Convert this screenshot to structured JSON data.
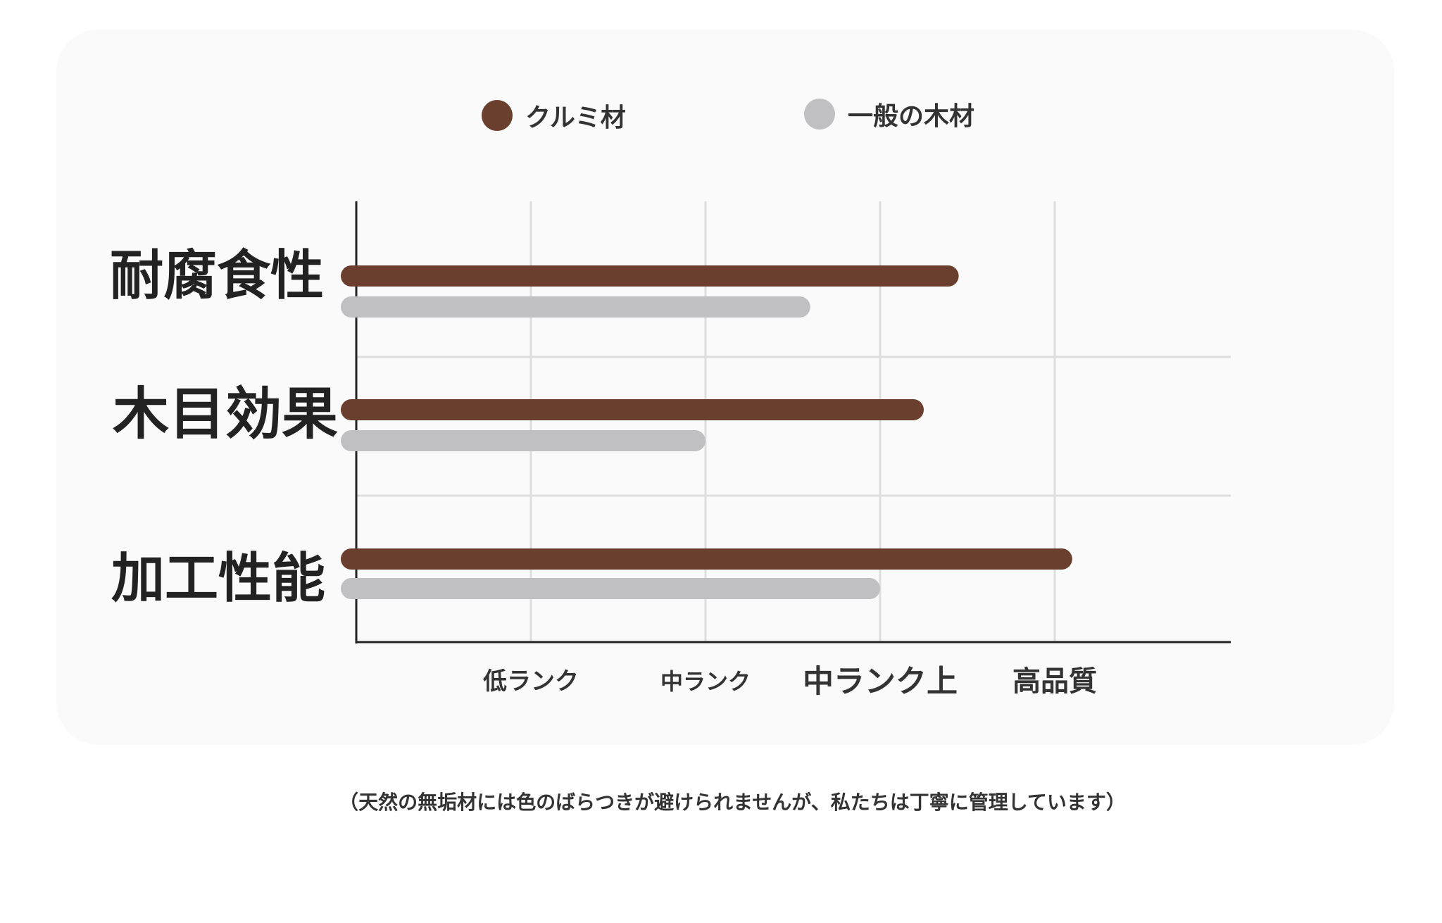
{
  "legend": [
    {
      "label": "クルミ材",
      "color": "#6b3f2d"
    },
    {
      "label": "一般の木材",
      "color": "#c0c0c2"
    }
  ],
  "footnote": "（天然の無垢材には色のばらつきが避けられませんが、私たちは丁寧に管理しています）",
  "chart_data": {
    "type": "bar",
    "orientation": "horizontal",
    "categories": [
      "耐腐食性",
      "木目効果",
      "加工性能"
    ],
    "x_tick_labels": [
      "低ランク",
      "中ランク",
      "中ランク上",
      "高品質"
    ],
    "xlim": [
      0,
      5
    ],
    "series": [
      {
        "name": "クルミ材",
        "color": "#6b3f2d",
        "values": [
          3.45,
          3.25,
          4.1
        ]
      },
      {
        "name": "一般の木材",
        "color": "#c0c0c2",
        "values": [
          2.6,
          2.0,
          3.0
        ]
      }
    ],
    "grid": true,
    "legend_position": "top"
  }
}
